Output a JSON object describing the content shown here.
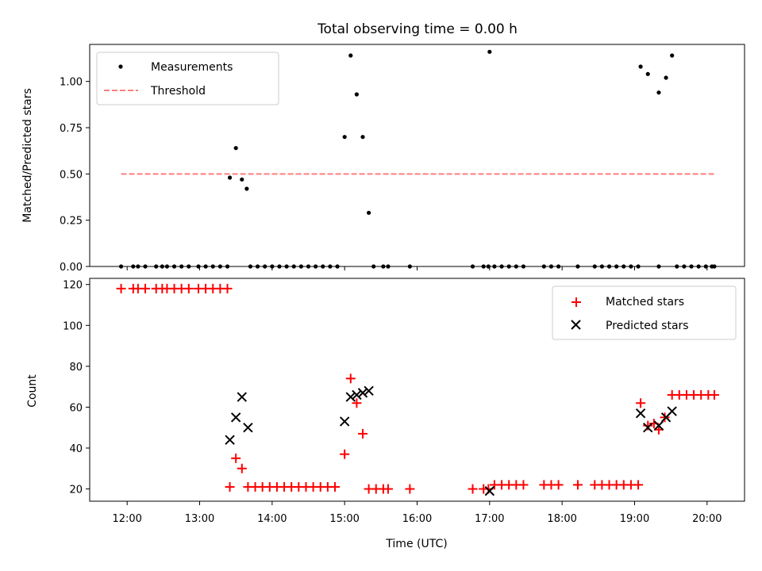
{
  "chart_data": [
    {
      "type": "scatter",
      "title": "Total observing time = 0.00 h",
      "xlabel": "",
      "ylabel": "Matched/Predicted stars",
      "xlim": [
        "11:29",
        "20:31"
      ],
      "ylim": [
        0,
        1.2
      ],
      "yticks": [
        "0.00",
        "0.25",
        "0.50",
        "0.75",
        "1.00"
      ],
      "yticks_values": [
        0,
        0.25,
        0.5,
        0.75,
        1.0
      ],
      "grid": false,
      "legend": "upper left",
      "series": [
        {
          "name": "Measurements",
          "color": "#000000",
          "marker": "dot",
          "points": [
            [
              "11:55",
              0
            ],
            [
              "12:05",
              0
            ],
            [
              "12:09",
              0
            ],
            [
              "12:15",
              0
            ],
            [
              "12:24",
              0
            ],
            [
              "12:29",
              0
            ],
            [
              "12:33",
              0
            ],
            [
              "12:39",
              0
            ],
            [
              "12:45",
              0
            ],
            [
              "12:51",
              0
            ],
            [
              "12:59",
              0
            ],
            [
              "13:05",
              0
            ],
            [
              "13:11",
              0
            ],
            [
              "13:17",
              0
            ],
            [
              "13:23",
              0
            ],
            [
              "13:25",
              0.48
            ],
            [
              "13:30",
              0.64
            ],
            [
              "13:35",
              0.47
            ],
            [
              "13:39",
              0.42
            ],
            [
              "13:42",
              0
            ],
            [
              "13:48",
              0
            ],
            [
              "13:54",
              0
            ],
            [
              "14:00",
              0
            ],
            [
              "14:06",
              0
            ],
            [
              "14:12",
              0
            ],
            [
              "14:18",
              0
            ],
            [
              "14:24",
              0
            ],
            [
              "14:30",
              0
            ],
            [
              "14:36",
              0
            ],
            [
              "14:42",
              0
            ],
            [
              "14:48",
              0
            ],
            [
              "14:54",
              0
            ],
            [
              "15:00",
              0.7
            ],
            [
              "15:05",
              1.14
            ],
            [
              "15:10",
              0.93
            ],
            [
              "15:15",
              0.7
            ],
            [
              "15:20",
              0.29
            ],
            [
              "15:24",
              0
            ],
            [
              "15:32",
              0
            ],
            [
              "15:36",
              0
            ],
            [
              "15:54",
              0
            ],
            [
              "16:46",
              0
            ],
            [
              "16:55",
              0
            ],
            [
              "16:59",
              0
            ],
            [
              "17:00",
              1.16
            ],
            [
              "17:04",
              0
            ],
            [
              "17:10",
              0
            ],
            [
              "17:16",
              0
            ],
            [
              "17:22",
              0
            ],
            [
              "17:28",
              0
            ],
            [
              "17:45",
              0
            ],
            [
              "17:51",
              0
            ],
            [
              "17:57",
              0
            ],
            [
              "18:13",
              0
            ],
            [
              "18:27",
              0
            ],
            [
              "18:33",
              0
            ],
            [
              "18:39",
              0
            ],
            [
              "18:45",
              0
            ],
            [
              "18:51",
              0
            ],
            [
              "18:57",
              0
            ],
            [
              "19:03",
              0
            ],
            [
              "19:05",
              1.08
            ],
            [
              "19:11",
              1.04
            ],
            [
              "19:20",
              0
            ],
            [
              "19:20",
              0.94
            ],
            [
              "19:26",
              1.02
            ],
            [
              "19:31",
              1.14
            ],
            [
              "19:35",
              0
            ],
            [
              "19:41",
              0
            ],
            [
              "19:47",
              0
            ],
            [
              "19:53",
              0
            ],
            [
              "19:59",
              0
            ],
            [
              "20:04",
              0
            ],
            [
              "20:06",
              0
            ]
          ]
        },
        {
          "name": "Threshold",
          "color": "#ff7f7f",
          "line": "dashed",
          "x": [
            "11:55",
            "20:06"
          ],
          "y": [
            0.5,
            0.5
          ]
        }
      ]
    },
    {
      "type": "scatter",
      "title": "",
      "xlabel": "Time (UTC)",
      "ylabel": "Count",
      "xlim": [
        "11:29",
        "20:31"
      ],
      "ylim": [
        14,
        123
      ],
      "xticks": [
        "12:00",
        "13:00",
        "14:00",
        "15:00",
        "16:00",
        "17:00",
        "18:00",
        "19:00",
        "20:00"
      ],
      "yticks": [
        "20",
        "40",
        "60",
        "80",
        "100",
        "120"
      ],
      "yticks_values": [
        20,
        40,
        60,
        80,
        100,
        120
      ],
      "grid": false,
      "legend": "upper right",
      "series": [
        {
          "name": "Matched stars",
          "color": "#ff0000",
          "marker": "plus",
          "points": [
            [
              "11:55",
              118
            ],
            [
              "12:05",
              118
            ],
            [
              "12:09",
              118
            ],
            [
              "12:15",
              118
            ],
            [
              "12:24",
              118
            ],
            [
              "12:29",
              118
            ],
            [
              "12:33",
              118
            ],
            [
              "12:39",
              118
            ],
            [
              "12:45",
              118
            ],
            [
              "12:51",
              118
            ],
            [
              "12:59",
              118
            ],
            [
              "13:05",
              118
            ],
            [
              "13:11",
              118
            ],
            [
              "13:17",
              118
            ],
            [
              "13:23",
              118
            ],
            [
              "13:25",
              21
            ],
            [
              "13:30",
              35
            ],
            [
              "13:35",
              30
            ],
            [
              "13:40",
              21
            ],
            [
              "13:46",
              21
            ],
            [
              "13:52",
              21
            ],
            [
              "13:58",
              21
            ],
            [
              "14:04",
              21
            ],
            [
              "14:10",
              21
            ],
            [
              "14:16",
              21
            ],
            [
              "14:22",
              21
            ],
            [
              "14:28",
              21
            ],
            [
              "14:34",
              21
            ],
            [
              "14:40",
              21
            ],
            [
              "14:46",
              21
            ],
            [
              "14:52",
              21
            ],
            [
              "15:00",
              37
            ],
            [
              "15:05",
              74
            ],
            [
              "15:10",
              62
            ],
            [
              "15:15",
              47
            ],
            [
              "15:20",
              20
            ],
            [
              "15:26",
              20
            ],
            [
              "15:32",
              20
            ],
            [
              "15:36",
              20
            ],
            [
              "15:54",
              20
            ],
            [
              "16:46",
              20
            ],
            [
              "16:55",
              20
            ],
            [
              "16:59",
              20
            ],
            [
              "17:04",
              22
            ],
            [
              "17:10",
              22
            ],
            [
              "17:16",
              22
            ],
            [
              "17:22",
              22
            ],
            [
              "17:28",
              22
            ],
            [
              "17:45",
              22
            ],
            [
              "17:51",
              22
            ],
            [
              "17:57",
              22
            ],
            [
              "18:13",
              22
            ],
            [
              "18:27",
              22
            ],
            [
              "18:33",
              22
            ],
            [
              "18:39",
              22
            ],
            [
              "18:45",
              22
            ],
            [
              "18:51",
              22
            ],
            [
              "18:57",
              22
            ],
            [
              "19:03",
              22
            ],
            [
              "19:05",
              62
            ],
            [
              "19:11",
              51
            ],
            [
              "19:16",
              52
            ],
            [
              "19:20",
              49
            ],
            [
              "19:25",
              55
            ],
            [
              "19:31",
              66
            ],
            [
              "19:37",
              66
            ],
            [
              "19:43",
              66
            ],
            [
              "19:49",
              66
            ],
            [
              "19:55",
              66
            ],
            [
              "20:01",
              66
            ],
            [
              "20:06",
              66
            ]
          ]
        },
        {
          "name": "Predicted stars",
          "color": "#000000",
          "marker": "x",
          "points": [
            [
              "13:25",
              44
            ],
            [
              "13:30",
              55
            ],
            [
              "13:35",
              65
            ],
            [
              "13:40",
              50
            ],
            [
              "15:00",
              53
            ],
            [
              "15:05",
              65
            ],
            [
              "15:10",
              66
            ],
            [
              "15:15",
              67
            ],
            [
              "15:20",
              68
            ],
            [
              "17:00",
              19
            ],
            [
              "19:05",
              57
            ],
            [
              "19:11",
              50
            ],
            [
              "19:20",
              51
            ],
            [
              "19:26",
              55
            ],
            [
              "19:31",
              58
            ]
          ]
        }
      ]
    }
  ]
}
